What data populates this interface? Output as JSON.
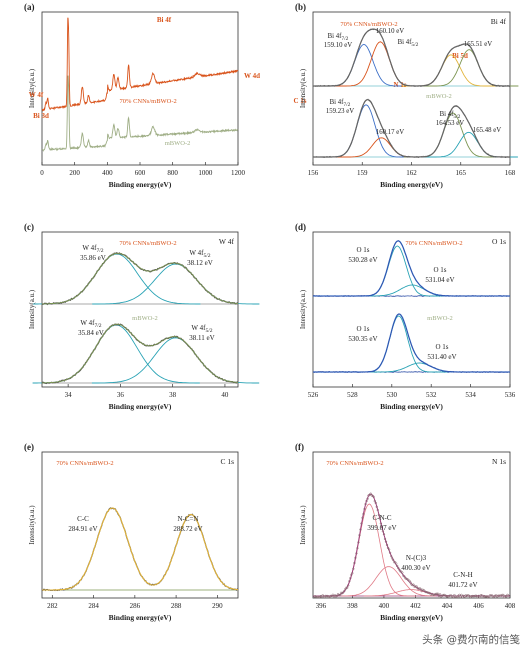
{
  "figure": {
    "watermark": "头条 @费尔南的信笺",
    "colors": {
      "orange": "#d9541c",
      "sage": "#9fae86",
      "gray": "#6f6f6f",
      "olive": "#7d9653",
      "yellow": "#e3b43a",
      "teal": "#2aa3b5",
      "blue": "#3c6fc7",
      "navy": "#2c4da6",
      "dk": "#555555",
      "nfit": "#e07a86",
      "nenv": "#9b3a78",
      "npts": "#8a6a72",
      "frame": "#333333"
    }
  },
  "chart_data": [
    {
      "id": "a",
      "panel_label": "(a)",
      "type": "line",
      "xlabel": "Binding energy(eV)",
      "ylabel": "Intensity(a.u.)",
      "xlim": [
        0,
        1200
      ],
      "xticks": [
        0,
        200,
        400,
        600,
        800,
        1000,
        1200
      ],
      "series": [
        {
          "name": "70% CNNs/mBWO-2",
          "color": "orange"
        },
        {
          "name": "mBWO-2",
          "color": "sage"
        }
      ],
      "peak_labels": [
        {
          "text": "Bi 4f",
          "x": 158
        },
        {
          "text": "W 4d",
          "x": 247
        },
        {
          "text": "C 1s",
          "x": 285
        },
        {
          "text": "N 1s",
          "x": 399
        },
        {
          "text": "Bi 5d",
          "x": 440
        },
        {
          "text": "O 1s",
          "x": 530
        },
        {
          "text": "Bi 4p",
          "x": 680
        },
        {
          "text": "W 4f",
          "x": 35
        },
        {
          "text": "Bi 3d",
          "x": 24
        }
      ]
    },
    {
      "id": "b",
      "panel_label": "(b)",
      "type": "line",
      "element_label": "Bi 4f",
      "xlabel": "Binding energy(eV)",
      "ylabel": "Intensity(a.u.)",
      "xlim": [
        156,
        168
      ],
      "xticks": [
        156,
        159,
        162,
        165,
        168
      ],
      "series": [
        {
          "name": "70% CNNs/mBWO-2"
        },
        {
          "name": "mBWO-2"
        }
      ],
      "peaks": [
        {
          "series": "70% CNNs/mBWO-2",
          "text": "Bi 4f7/2",
          "value": "159.10 eV",
          "x": 159.1
        },
        {
          "series": "70% CNNs/mBWO-2",
          "text": "",
          "value": "160.10 eV",
          "x": 160.1
        },
        {
          "series": "70% CNNs/mBWO-2",
          "text": "Bi 4f5/2",
          "value": "",
          "x": 164.4
        },
        {
          "series": "70% CNNs/mBWO-2",
          "text": "",
          "value": "165.51 eV",
          "x": 165.51
        },
        {
          "series": "mBWO-2",
          "text": "Bi 4f7/2",
          "value": "159.23 eV",
          "x": 159.23
        },
        {
          "series": "mBWO-2",
          "text": "",
          "value": "160.17 eV",
          "x": 160.17
        },
        {
          "series": "mBWO-2",
          "text": "Bi 4f5/2",
          "value": "164.53 eV",
          "x": 164.53
        },
        {
          "series": "mBWO-2",
          "text": "",
          "value": "165.48 eV",
          "x": 165.48
        }
      ]
    },
    {
      "id": "c",
      "panel_label": "(c)",
      "type": "line",
      "element_label": "W 4f",
      "xlabel": "Binding energy(eV)",
      "ylabel": "Intensity(a.u.)",
      "xlim": [
        33,
        40.5
      ],
      "xticks": [
        34,
        36,
        38,
        40
      ],
      "series": [
        {
          "name": "70% CNNs/mBWO-2"
        },
        {
          "name": "mBWO-2"
        }
      ],
      "peaks": [
        {
          "series": "70% CNNs/mBWO-2",
          "text": "W 4f7/2",
          "value": "35.86 eV",
          "x": 35.86
        },
        {
          "series": "70% CNNs/mBWO-2",
          "text": "W 4f5/2",
          "value": "38.12 eV",
          "x": 38.12
        },
        {
          "series": "mBWO-2",
          "text": "W 4f7/2",
          "value": "35.84 eV",
          "x": 35.84
        },
        {
          "series": "mBWO-2",
          "text": "W 4f5/2",
          "value": "38.11 eV",
          "x": 38.11
        }
      ]
    },
    {
      "id": "d",
      "panel_label": "(d)",
      "type": "line",
      "element_label": "O 1s",
      "xlabel": "Binding energy(eV)",
      "ylabel": "Intensity(a.u.)",
      "xlim": [
        526,
        536
      ],
      "xticks": [
        526,
        528,
        530,
        532,
        534,
        536
      ],
      "series": [
        {
          "name": "70% CNNs/mBWO-2"
        },
        {
          "name": "mBWO-2"
        }
      ],
      "peaks": [
        {
          "series": "70% CNNs/mBWO-2",
          "text": "O 1s",
          "value": "530.28 eV",
          "x": 530.28
        },
        {
          "series": "70% CNNs/mBWO-2",
          "text": "O 1s",
          "value": "531.04 eV",
          "x": 531.04
        },
        {
          "series": "mBWO-2",
          "text": "O 1s",
          "value": "530.35 eV",
          "x": 530.35
        },
        {
          "series": "mBWO-2",
          "text": "O 1s",
          "value": "531.40 eV",
          "x": 531.4
        }
      ]
    },
    {
      "id": "e",
      "panel_label": "(e)",
      "type": "line",
      "element_label": "C 1s",
      "xlabel": "Binding energy(eV)",
      "ylabel": "Intensity(a.u.)",
      "xlim": [
        281.5,
        291
      ],
      "xticks": [
        282,
        284,
        286,
        288,
        290
      ],
      "series": [
        {
          "name": "70% CNNs/mBWO-2"
        }
      ],
      "peaks": [
        {
          "text": "C-C",
          "value": "284.91 eV",
          "x": 284.91
        },
        {
          "text": "N-C=N",
          "value": "288.72 eV",
          "x": 288.72
        }
      ]
    },
    {
      "id": "f",
      "panel_label": "(f)",
      "type": "line",
      "element_label": "N 1s",
      "xlabel": "Binding energy(eV)",
      "ylabel": "Intensity(a.u.)",
      "xlim": [
        395.5,
        408
      ],
      "xticks": [
        396,
        398,
        400,
        402,
        404,
        406,
        408
      ],
      "series": [
        {
          "name": "70% CNNs/mBWO-2"
        }
      ],
      "peaks": [
        {
          "text": "C-N-C",
          "value": "399.07 eV",
          "x": 399.07
        },
        {
          "text": "N-(C)3",
          "value": "400.30 eV",
          "x": 400.3
        },
        {
          "text": "C-N-H",
          "value": "401.72 eV",
          "x": 401.72
        }
      ]
    }
  ]
}
